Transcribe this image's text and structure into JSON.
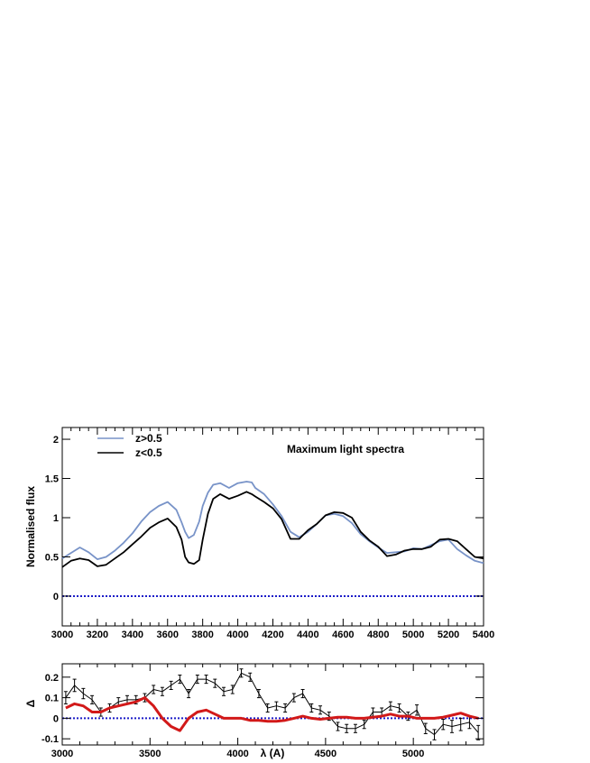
{
  "chart_data": [
    {
      "type": "line",
      "title": "Maximum light spectra",
      "xlabel": "",
      "ylabel": "Normalised flux",
      "xlim": [
        3000,
        5400
      ],
      "ylim": [
        -0.38,
        2.15
      ],
      "x_ticks": [
        3000,
        3200,
        3400,
        3600,
        3800,
        4000,
        4200,
        4400,
        4600,
        4800,
        5000,
        5200,
        5400
      ],
      "y_ticks": [
        0,
        0.5,
        1,
        1.5,
        2
      ],
      "y_tick_labels": [
        "0",
        "0.5",
        "1",
        "1.5",
        "2"
      ],
      "legend_position": "top-left",
      "reference_line": {
        "y": 0,
        "color": "#1c1cc8",
        "style": "dotted"
      },
      "series": [
        {
          "name": "z>0.5",
          "color": "#7893c8",
          "x": [
            3000,
            3050,
            3100,
            3150,
            3200,
            3250,
            3300,
            3350,
            3400,
            3450,
            3500,
            3550,
            3600,
            3650,
            3680,
            3700,
            3720,
            3750,
            3780,
            3800,
            3830,
            3860,
            3900,
            3950,
            4000,
            4050,
            4080,
            4100,
            4150,
            4200,
            4250,
            4300,
            4350,
            4400,
            4450,
            4500,
            4550,
            4600,
            4650,
            4700,
            4750,
            4800,
            4850,
            4900,
            4950,
            5000,
            5050,
            5100,
            5150,
            5200,
            5250,
            5300,
            5350,
            5400
          ],
          "values": [
            0.48,
            0.55,
            0.62,
            0.56,
            0.47,
            0.5,
            0.58,
            0.68,
            0.8,
            0.95,
            1.07,
            1.15,
            1.2,
            1.1,
            0.94,
            0.82,
            0.74,
            0.78,
            0.95,
            1.15,
            1.32,
            1.42,
            1.44,
            1.38,
            1.44,
            1.46,
            1.45,
            1.38,
            1.3,
            1.17,
            1.02,
            0.82,
            0.75,
            0.82,
            0.92,
            1.03,
            1.05,
            1.02,
            0.93,
            0.79,
            0.7,
            0.62,
            0.55,
            0.56,
            0.57,
            0.61,
            0.6,
            0.65,
            0.7,
            0.72,
            0.6,
            0.52,
            0.45,
            0.42
          ]
        },
        {
          "name": "z<0.5",
          "color": "#000000",
          "x": [
            3000,
            3050,
            3100,
            3150,
            3200,
            3250,
            3300,
            3350,
            3400,
            3450,
            3500,
            3550,
            3600,
            3650,
            3680,
            3700,
            3720,
            3750,
            3780,
            3800,
            3830,
            3860,
            3900,
            3950,
            4000,
            4050,
            4080,
            4100,
            4150,
            4200,
            4250,
            4300,
            4350,
            4400,
            4450,
            4500,
            4550,
            4600,
            4650,
            4700,
            4750,
            4800,
            4850,
            4900,
            4950,
            5000,
            5050,
            5100,
            5150,
            5200,
            5250,
            5300,
            5350,
            5400
          ],
          "values": [
            0.37,
            0.45,
            0.48,
            0.46,
            0.38,
            0.4,
            0.48,
            0.56,
            0.66,
            0.76,
            0.87,
            0.94,
            0.99,
            0.88,
            0.72,
            0.5,
            0.43,
            0.41,
            0.46,
            0.72,
            1.05,
            1.24,
            1.3,
            1.24,
            1.28,
            1.33,
            1.3,
            1.27,
            1.2,
            1.12,
            0.98,
            0.73,
            0.73,
            0.84,
            0.92,
            1.03,
            1.07,
            1.06,
            1.0,
            0.82,
            0.71,
            0.63,
            0.51,
            0.53,
            0.58,
            0.6,
            0.6,
            0.63,
            0.72,
            0.73,
            0.7,
            0.6,
            0.5,
            0.48
          ]
        }
      ]
    },
    {
      "type": "line",
      "title": "",
      "xlabel": "λ (A)",
      "ylabel": "Δ",
      "xlim": [
        3000,
        5400
      ],
      "ylim": [
        -0.13,
        0.265
      ],
      "x_ticks": [
        3000,
        3500,
        4000,
        4500,
        5000
      ],
      "y_ticks": [
        -0.1,
        0,
        0.1,
        0.2
      ],
      "y_tick_labels": [
        "-0.1",
        "0",
        "0.1",
        "0.2"
      ],
      "reference_line": {
        "y": 0,
        "color": "#1c1cc8",
        "style": "dotted"
      },
      "series": [
        {
          "name": "",
          "color": "#000000",
          "error_bars": true,
          "x": [
            3020,
            3070,
            3120,
            3170,
            3220,
            3270,
            3320,
            3370,
            3420,
            3470,
            3520,
            3570,
            3620,
            3670,
            3720,
            3770,
            3820,
            3870,
            3920,
            3970,
            4020,
            4070,
            4120,
            4170,
            4220,
            4270,
            4320,
            4370,
            4420,
            4470,
            4520,
            4570,
            4620,
            4670,
            4720,
            4770,
            4820,
            4870,
            4920,
            4970,
            5020,
            5070,
            5120,
            5170,
            5220,
            5270,
            5320,
            5370
          ],
          "values": [
            0.1,
            0.16,
            0.12,
            0.09,
            0.03,
            0.05,
            0.08,
            0.09,
            0.09,
            0.1,
            0.14,
            0.13,
            0.16,
            0.19,
            0.12,
            0.19,
            0.19,
            0.17,
            0.13,
            0.14,
            0.22,
            0.2,
            0.12,
            0.05,
            0.06,
            0.05,
            0.1,
            0.12,
            0.05,
            0.04,
            0.01,
            -0.04,
            -0.05,
            -0.05,
            -0.03,
            0.03,
            0.03,
            0.06,
            0.05,
            0.01,
            0.04,
            -0.05,
            -0.08,
            -0.03,
            -0.04,
            -0.03,
            -0.02,
            -0.07
          ],
          "errors": [
            0.03,
            0.03,
            0.025,
            0.02,
            0.02,
            0.02,
            0.02,
            0.02,
            0.02,
            0.02,
            0.02,
            0.02,
            0.02,
            0.02,
            0.02,
            0.02,
            0.02,
            0.02,
            0.02,
            0.02,
            0.02,
            0.02,
            0.02,
            0.02,
            0.02,
            0.02,
            0.02,
            0.02,
            0.02,
            0.02,
            0.02,
            0.02,
            0.02,
            0.02,
            0.02,
            0.02,
            0.02,
            0.02,
            0.02,
            0.02,
            0.025,
            0.025,
            0.025,
            0.025,
            0.03,
            0.03,
            0.03,
            0.035
          ]
        },
        {
          "name": "",
          "color": "#d21919",
          "x": [
            3020,
            3070,
            3120,
            3170,
            3220,
            3270,
            3320,
            3370,
            3420,
            3470,
            3520,
            3570,
            3620,
            3670,
            3720,
            3770,
            3820,
            3870,
            3920,
            3970,
            4020,
            4070,
            4120,
            4170,
            4220,
            4270,
            4320,
            4370,
            4420,
            4470,
            4520,
            4570,
            4620,
            4670,
            4720,
            4770,
            4820,
            4870,
            4920,
            4970,
            5020,
            5070,
            5120,
            5170,
            5220,
            5270,
            5320,
            5370
          ],
          "values": [
            0.05,
            0.07,
            0.06,
            0.03,
            0.03,
            0.05,
            0.06,
            0.07,
            0.08,
            0.1,
            0.06,
            0.0,
            -0.04,
            -0.06,
            0.0,
            0.03,
            0.04,
            0.02,
            0.0,
            0.0,
            0.0,
            -0.01,
            -0.01,
            -0.015,
            -0.015,
            -0.01,
            0.0,
            0.01,
            0.0,
            -0.005,
            0.0,
            0.005,
            0.005,
            0.0,
            0.0,
            0.005,
            0.01,
            0.02,
            0.01,
            0.01,
            0.0,
            0.0,
            0.0,
            0.005,
            0.015,
            0.025,
            0.01,
            0.0
          ]
        }
      ]
    }
  ]
}
